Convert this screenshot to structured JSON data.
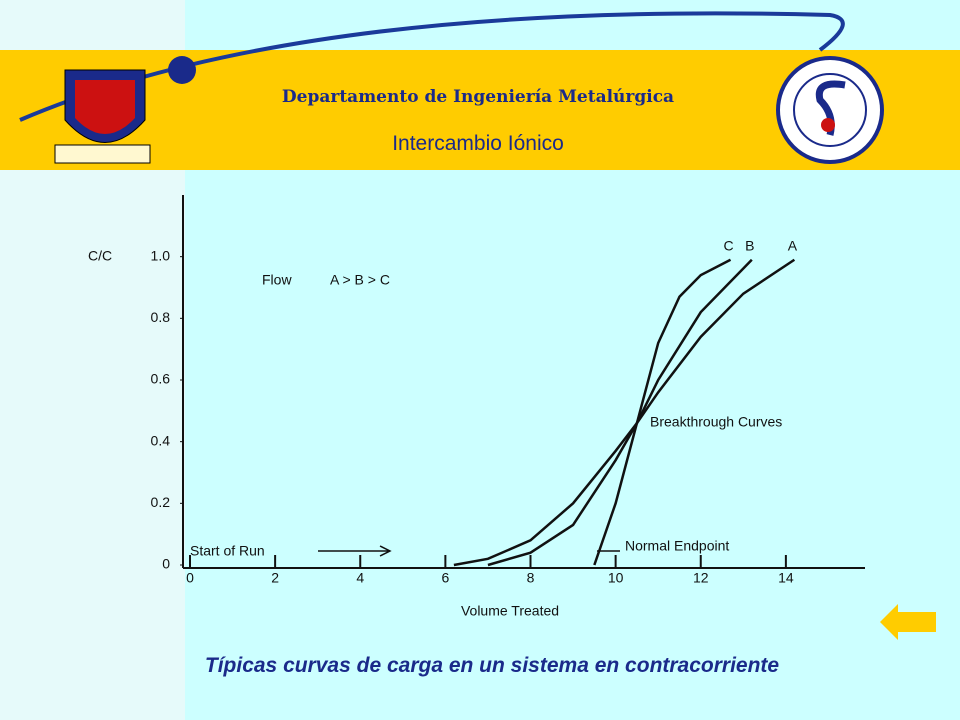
{
  "header": {
    "department": "Departamento de Ingeniería Metalúrgica",
    "subtitle": "Intercambio Iónico"
  },
  "caption": "Típicas curvas de carga en un sistema en contracorriente",
  "chart_data": {
    "type": "line",
    "y_label": "C/C",
    "x_label": "Volume Treated",
    "annotations": [
      "Flow",
      "A > B > C",
      "Breakthrough Curves",
      "Start of Run",
      "Normal Endpoint"
    ],
    "xlim": [
      0,
      16
    ],
    "xticks": [
      0,
      2,
      4,
      6,
      8,
      10,
      12,
      14
    ],
    "ylim": [
      0,
      1.2
    ],
    "yticks": [
      0,
      0.2,
      0.4,
      0.6,
      0.8,
      {
        "value": 1,
        "label": "1.0"
      }
    ],
    "series": [
      {
        "name": "C",
        "color": "#111111",
        "x": [
          9.5,
          10,
          10.5,
          11,
          11.5,
          12,
          12.7
        ],
        "values": [
          0,
          0.2,
          0.46,
          0.72,
          0.87,
          0.94,
          0.99
        ]
      },
      {
        "name": "B",
        "color": "#111111",
        "x": [
          7,
          8,
          9,
          10,
          10.5,
          11,
          12,
          13.2
        ],
        "values": [
          0,
          0.04,
          0.13,
          0.34,
          0.46,
          0.6,
          0.82,
          0.99
        ]
      },
      {
        "name": "A",
        "color": "#111111",
        "x": [
          6.2,
          7,
          8,
          9,
          10,
          10.5,
          11,
          12,
          13,
          14.2
        ],
        "values": [
          0,
          0.02,
          0.08,
          0.2,
          0.37,
          0.46,
          0.56,
          0.74,
          0.88,
          0.99
        ]
      }
    ]
  }
}
